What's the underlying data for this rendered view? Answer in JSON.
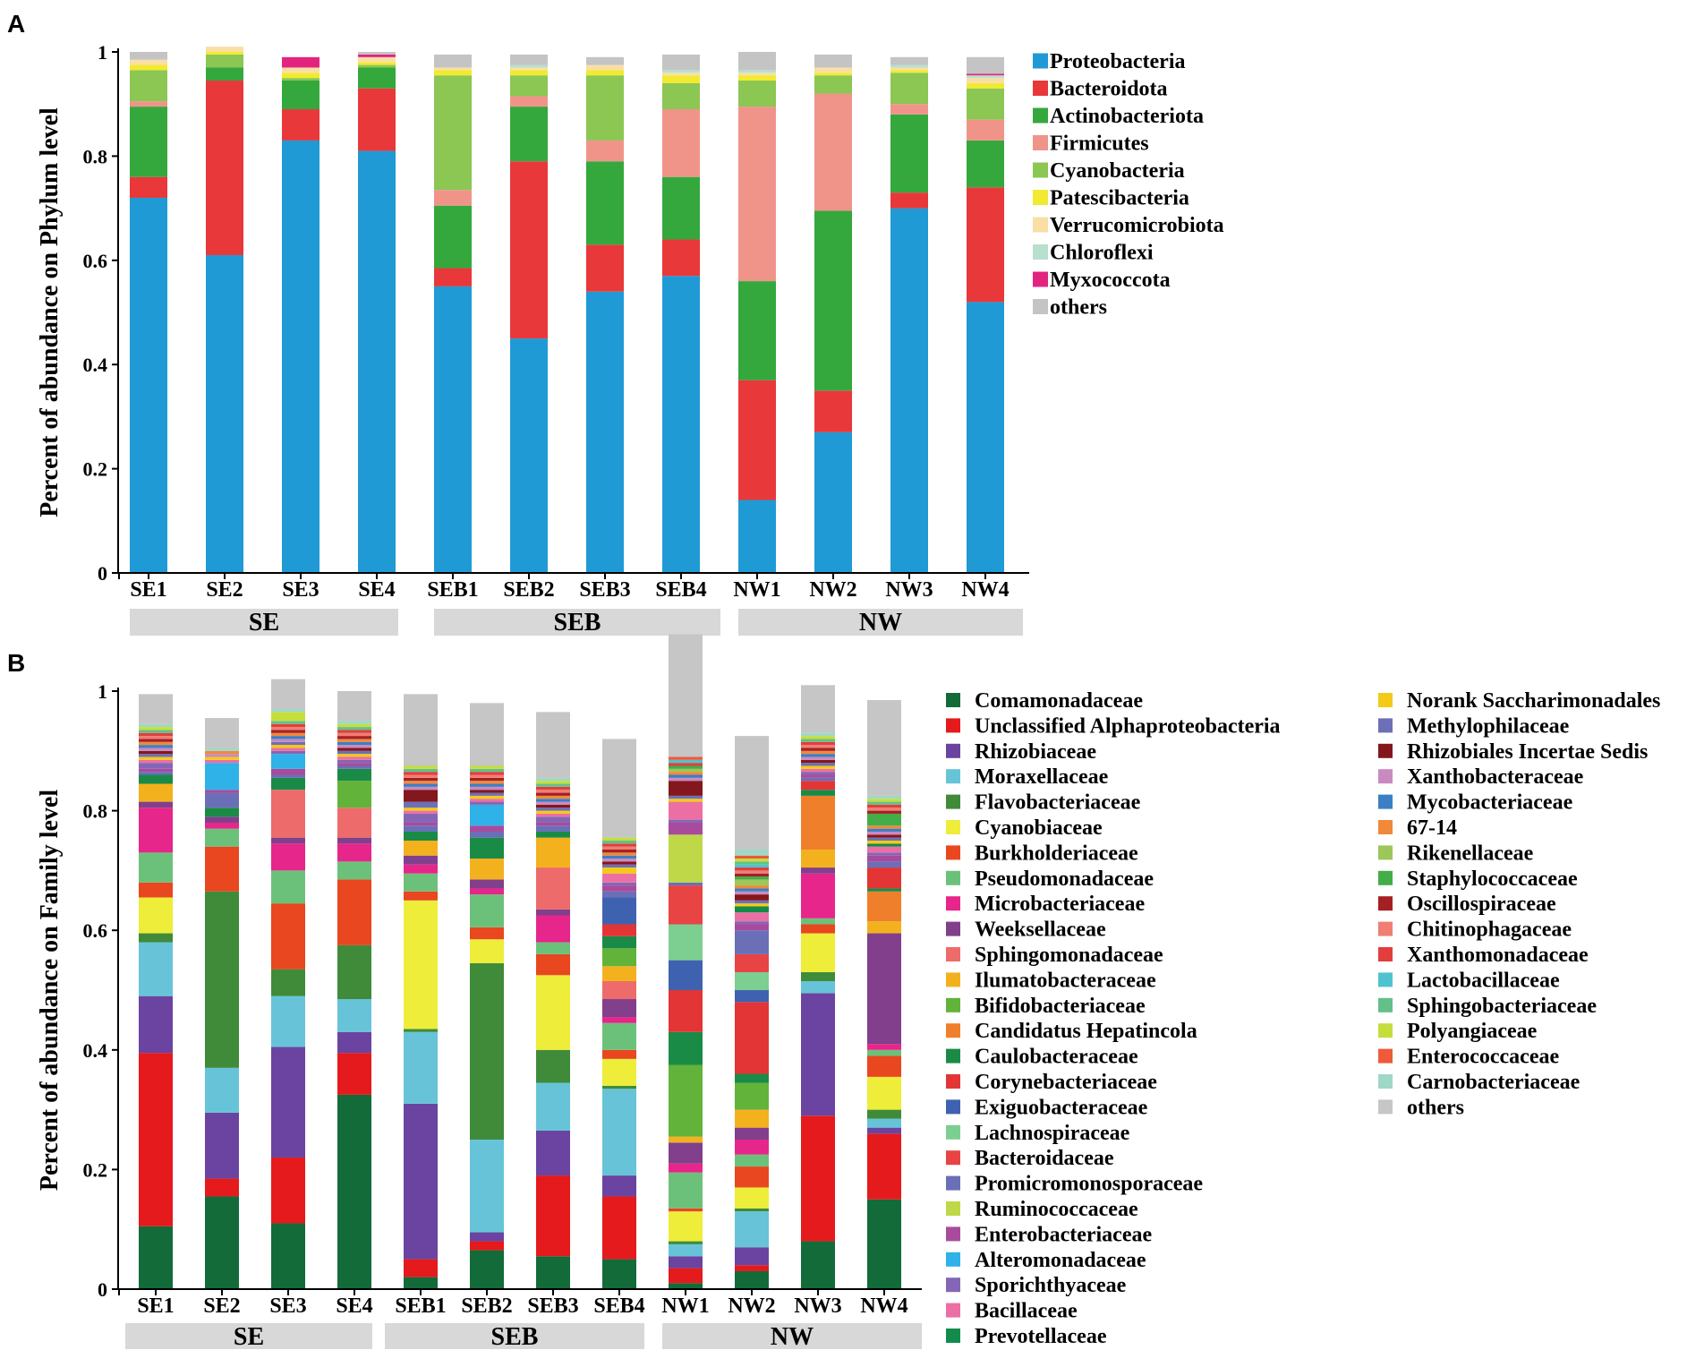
{
  "chart_data": [
    {
      "panel": "A",
      "type": "stacked-bar",
      "ylabel": "Percent of abundance on Phylum level",
      "ylim": [
        0,
        1
      ],
      "yticks": [
        "0",
        "0.2",
        "0.4",
        "0.6",
        "0.8",
        "1"
      ],
      "categories": [
        "SE1",
        "SE2",
        "SE3",
        "SE4",
        "SEB1",
        "SEB2",
        "SEB3",
        "SEB4",
        "NW1",
        "NW2",
        "NW3",
        "NW4"
      ],
      "groups": [
        {
          "label": "SE",
          "count": 4
        },
        {
          "label": "SEB",
          "count": 4
        },
        {
          "label": "NW",
          "count": 4
        }
      ],
      "series": [
        {
          "name": "Proteobacteria",
          "color": "#1f9ad5",
          "values": [
            0.72,
            0.61,
            0.83,
            0.81,
            0.55,
            0.45,
            0.54,
            0.57,
            0.14,
            0.27,
            0.7,
            0.52
          ]
        },
        {
          "name": "Bacteroidota",
          "color": "#e8383a",
          "values": [
            0.04,
            0.335,
            0.06,
            0.12,
            0.035,
            0.34,
            0.09,
            0.07,
            0.23,
            0.08,
            0.03,
            0.22
          ]
        },
        {
          "name": "Actinobacteriota",
          "color": "#34a83c",
          "values": [
            0.135,
            0.025,
            0.055,
            0.04,
            0.12,
            0.105,
            0.16,
            0.12,
            0.19,
            0.345,
            0.15,
            0.09
          ]
        },
        {
          "name": "Firmicutes",
          "color": "#f0948a",
          "values": [
            0.01,
            0.0,
            0.0,
            0.0,
            0.03,
            0.02,
            0.04,
            0.13,
            0.335,
            0.225,
            0.02,
            0.04
          ]
        },
        {
          "name": "Cyanobacteria",
          "color": "#8cc653",
          "values": [
            0.06,
            0.025,
            0.005,
            0.005,
            0.22,
            0.04,
            0.125,
            0.05,
            0.05,
            0.035,
            0.06,
            0.06
          ]
        },
        {
          "name": "Patescibacteria",
          "color": "#f1ea30",
          "values": [
            0.01,
            0.005,
            0.01,
            0.005,
            0.01,
            0.01,
            0.01,
            0.015,
            0.01,
            0.005,
            0.005,
            0.01
          ]
        },
        {
          "name": "Verrucomicrobiota",
          "color": "#f9dfa5",
          "values": [
            0.01,
            0.01,
            0.01,
            0.01,
            0.005,
            0.005,
            0.01,
            0.005,
            0.005,
            0.01,
            0.005,
            0.01
          ]
        },
        {
          "name": "Chloroflexi",
          "color": "#b7e0cf",
          "values": [
            0.0,
            0.0,
            0.0,
            0.0,
            0.0,
            0.005,
            0.0,
            0.005,
            0.005,
            0.0,
            0.005,
            0.005
          ]
        },
        {
          "name": "Myxococcota",
          "color": "#e3247f",
          "values": [
            0.0,
            0.0,
            0.02,
            0.005,
            0.0,
            0.0,
            0.0,
            0.0,
            0.0,
            0.0,
            0.0,
            0.003
          ]
        },
        {
          "name": "others",
          "color": "#c4c4c4",
          "values": [
            0.015,
            0.0,
            0.0,
            0.005,
            0.025,
            0.02,
            0.015,
            0.03,
            0.035,
            0.025,
            0.015,
            0.032
          ]
        }
      ]
    },
    {
      "panel": "B",
      "type": "stacked-bar",
      "ylabel": "Percent of abundance on Family level",
      "ylim": [
        0,
        1
      ],
      "yticks": [
        "0",
        "0.2",
        "0.4",
        "0.6",
        "0.8",
        "1"
      ],
      "categories": [
        "SE1",
        "SE2",
        "SE3",
        "SE4",
        "SEB1",
        "SEB2",
        "SEB3",
        "SEB4",
        "NW1",
        "NW2",
        "NW3",
        "NW4"
      ],
      "groups": [
        {
          "label": "SE",
          "count": 4
        },
        {
          "label": "SEB",
          "count": 4
        },
        {
          "label": "NW",
          "count": 4
        }
      ],
      "series": [
        {
          "name": "Comamonadaceae",
          "color": "#126b38",
          "values": [
            0.105,
            0.155,
            0.11,
            0.325,
            0.02,
            0.065,
            0.055,
            0.05,
            0.01,
            0.03,
            0.08,
            0.15
          ]
        },
        {
          "name": "Unclassified Alphaproteobacteria",
          "color": "#e41a1c",
          "values": [
            0.29,
            0.03,
            0.11,
            0.07,
            0.03,
            0.015,
            0.135,
            0.105,
            0.025,
            0.01,
            0.21,
            0.11
          ]
        },
        {
          "name": "Rhizobiaceae",
          "color": "#6a44a0",
          "values": [
            0.095,
            0.11,
            0.185,
            0.035,
            0.26,
            0.015,
            0.075,
            0.035,
            0.02,
            0.03,
            0.205,
            0.01
          ]
        },
        {
          "name": "Moraxellaceae",
          "color": "#67c4d8",
          "values": [
            0.09,
            0.075,
            0.085,
            0.055,
            0.12,
            0.155,
            0.08,
            0.145,
            0.02,
            0.06,
            0.02,
            0.015
          ]
        },
        {
          "name": "Flavobacteriaceae",
          "color": "#3f8b3a",
          "values": [
            0.015,
            0.295,
            0.045,
            0.09,
            0.005,
            0.295,
            0.055,
            0.005,
            0.005,
            0.005,
            0.015,
            0.015
          ]
        },
        {
          "name": "Cyanobiaceae",
          "color": "#eded3a",
          "values": [
            0.06,
            0.0,
            0.0,
            0.0,
            0.215,
            0.04,
            0.125,
            0.045,
            0.05,
            0.035,
            0.065,
            0.055
          ]
        },
        {
          "name": "Burkholderiaceae",
          "color": "#e8471f",
          "values": [
            0.025,
            0.075,
            0.11,
            0.11,
            0.015,
            0.02,
            0.035,
            0.015,
            0.005,
            0.035,
            0.015,
            0.035
          ]
        },
        {
          "name": "Pseudomonadaceae",
          "color": "#6cc17a",
          "values": [
            0.05,
            0.03,
            0.055,
            0.03,
            0.03,
            0.055,
            0.02,
            0.045,
            0.06,
            0.02,
            0.01,
            0.01
          ]
        },
        {
          "name": "Microbacteriaceae",
          "color": "#e6268a",
          "values": [
            0.075,
            0.01,
            0.045,
            0.03,
            0.015,
            0.01,
            0.045,
            0.01,
            0.015,
            0.025,
            0.075,
            0.01
          ]
        },
        {
          "name": "Weeksellaceae",
          "color": "#813f8c",
          "values": [
            0.01,
            0.01,
            0.01,
            0.01,
            0.015,
            0.015,
            0.01,
            0.03,
            0.035,
            0.02,
            0.01,
            0.185
          ]
        },
        {
          "name": "Sphingomonadaceae",
          "color": "#ee6b6b",
          "values": [
            0.0,
            0.0,
            0.08,
            0.05,
            0.0,
            0.0,
            0.07,
            0.03,
            0.0,
            0.0,
            0.0,
            0.0
          ]
        },
        {
          "name": "Ilumatobacteraceae",
          "color": "#f4b11e",
          "values": [
            0.03,
            0.0,
            0.0,
            0.0,
            0.025,
            0.035,
            0.05,
            0.025,
            0.01,
            0.03,
            0.03,
            0.02
          ]
        },
        {
          "name": "Bifidobacteriaceae",
          "color": "#62b33a",
          "values": [
            0.0,
            0.0,
            0.0,
            0.045,
            0.0,
            0.0,
            0.0,
            0.03,
            0.12,
            0.045,
            0.0,
            0.0
          ]
        },
        {
          "name": "Candidatus Hepatincola",
          "color": "#f07f2b",
          "values": [
            0.0,
            0.0,
            0.0,
            0.0,
            0.0,
            0.0,
            0.0,
            0.0,
            0.0,
            0.0,
            0.09,
            0.05
          ]
        },
        {
          "name": "Caulobacteraceae",
          "color": "#1a8b46",
          "values": [
            0.015,
            0.015,
            0.02,
            0.02,
            0.015,
            0.035,
            0.01,
            0.02,
            0.055,
            0.015,
            0.01,
            0.005
          ]
        },
        {
          "name": "Corynebacteriaceae",
          "color": "#e33535",
          "values": [
            0.0,
            0.0,
            0.0,
            0.0,
            0.0,
            0.0,
            0.0,
            0.02,
            0.07,
            0.12,
            0.015,
            0.035
          ]
        },
        {
          "name": "Exiguobacteraceae",
          "color": "#3f62b0",
          "values": [
            0.0,
            0.0,
            0.0,
            0.0,
            0.0,
            0.0,
            0.0,
            0.045,
            0.05,
            0.02,
            0.0,
            0.0
          ]
        },
        {
          "name": "Lachnospiraceae",
          "color": "#7ccf90",
          "values": [
            0.0,
            0.0,
            0.0,
            0.0,
            0.0,
            0.0,
            0.0,
            0.0,
            0.06,
            0.03,
            0.0,
            0.0
          ]
        },
        {
          "name": "Bacteroidaceae",
          "color": "#e84444",
          "values": [
            0.0,
            0.0,
            0.0,
            0.0,
            0.0,
            0.0,
            0.0,
            0.0,
            0.065,
            0.03,
            0.0,
            0.0
          ]
        },
        {
          "name": "Promicromonosporaceae",
          "color": "#6a6fb8",
          "values": [
            0.005,
            0.025,
            0.005,
            0.005,
            0.01,
            0.01,
            0.01,
            0.01,
            0.005,
            0.04,
            0.005,
            0.01
          ]
        },
        {
          "name": "Ruminococcaceae",
          "color": "#bfd847",
          "values": [
            0.0,
            0.0,
            0.0,
            0.0,
            0.0,
            0.0,
            0.0,
            0.0,
            0.08,
            0.0,
            0.0,
            0.0
          ]
        },
        {
          "name": "Enterobacteriaceae",
          "color": "#a94b9c",
          "values": [
            0.005,
            0.005,
            0.01,
            0.005,
            0.005,
            0.01,
            0.005,
            0.01,
            0.02,
            0.01,
            0.005,
            0.01
          ]
        },
        {
          "name": "Alteromonadaceae",
          "color": "#2eb2e7",
          "values": [
            0.0,
            0.045,
            0.025,
            0.0,
            0.0,
            0.035,
            0.0,
            0.0,
            0.0,
            0.0,
            0.0,
            0.0
          ]
        },
        {
          "name": "Sporichthyaceae",
          "color": "#8566b6",
          "values": [
            0.01,
            0.0,
            0.005,
            0.005,
            0.015,
            0.005,
            0.01,
            0.005,
            0.005,
            0.005,
            0.005,
            0.005
          ]
        },
        {
          "name": "Bacillaceae",
          "color": "#ec6fa4",
          "values": [
            0.005,
            0.005,
            0.005,
            0.005,
            0.005,
            0.005,
            0.005,
            0.015,
            0.03,
            0.015,
            0.005,
            0.01
          ]
        },
        {
          "name": "Prevotellaceae",
          "color": "#138b4b",
          "values": [
            0.0,
            0.0,
            0.0,
            0.0,
            0.0,
            0.0,
            0.0,
            0.0,
            0.0,
            0.01,
            0.0,
            0.005
          ]
        },
        {
          "name": "Norank Saccharimonadales",
          "color": "#f3ca18",
          "values": [
            0.005,
            0.005,
            0.005,
            0.005,
            0.005,
            0.005,
            0.005,
            0.01,
            0.005,
            0.005,
            0.005,
            0.005
          ]
        },
        {
          "name": "Methylophilaceae",
          "color": "#6d70b6",
          "values": [
            0.005,
            0.0,
            0.005,
            0.005,
            0.01,
            0.005,
            0.005,
            0.005,
            0.005,
            0.005,
            0.005,
            0.005
          ]
        },
        {
          "name": "Rhizobiales Incertae Sedis",
          "color": "#84171d",
          "values": [
            0.005,
            0.0,
            0.0,
            0.005,
            0.02,
            0.005,
            0.005,
            0.005,
            0.025,
            0.01,
            0.005,
            0.005
          ]
        },
        {
          "name": "Xanthobacteraceae",
          "color": "#c98ac0",
          "values": [
            0.005,
            0.005,
            0.005,
            0.005,
            0.005,
            0.005,
            0.005,
            0.005,
            0.005,
            0.005,
            0.005,
            0.005
          ]
        },
        {
          "name": "Mycobacteriaceae",
          "color": "#3b7fc4",
          "values": [
            0.005,
            0.0,
            0.005,
            0.005,
            0.005,
            0.005,
            0.005,
            0.005,
            0.005,
            0.005,
            0.005,
            0.005
          ]
        },
        {
          "name": "67-14",
          "color": "#f0893a",
          "values": [
            0.005,
            0.005,
            0.005,
            0.005,
            0.005,
            0.005,
            0.005,
            0.005,
            0.005,
            0.005,
            0.005,
            0.005
          ]
        },
        {
          "name": "Rikenellaceae",
          "color": "#9dc65b",
          "values": [
            0.0,
            0.0,
            0.0,
            0.0,
            0.0,
            0.0,
            0.0,
            0.0,
            0.005,
            0.01,
            0.0,
            0.0
          ]
        },
        {
          "name": "Staphylococcaceae",
          "color": "#43ad48",
          "values": [
            0.0,
            0.0,
            0.0,
            0.0,
            0.0,
            0.0,
            0.0,
            0.0,
            0.005,
            0.005,
            0.0,
            0.02
          ]
        },
        {
          "name": "Oscillospiraceae",
          "color": "#a52024",
          "values": [
            0.005,
            0.0,
            0.005,
            0.005,
            0.005,
            0.005,
            0.005,
            0.005,
            0.0,
            0.005,
            0.005,
            0.005
          ]
        },
        {
          "name": "Chitinophagaceae",
          "color": "#ef7e73",
          "values": [
            0.005,
            0.0,
            0.005,
            0.005,
            0.005,
            0.005,
            0.005,
            0.005,
            0.0,
            0.005,
            0.005,
            0.005
          ]
        },
        {
          "name": "Xanthomonadaceae",
          "color": "#e33d3d",
          "values": [
            0.005,
            0.0,
            0.005,
            0.005,
            0.005,
            0.005,
            0.005,
            0.005,
            0.005,
            0.005,
            0.005,
            0.005
          ]
        },
        {
          "name": "Lactobacillaceae",
          "color": "#4fc3cf",
          "values": [
            0.0,
            0.0,
            0.0,
            0.0,
            0.0,
            0.0,
            0.0,
            0.0,
            0.005,
            0.005,
            0.0,
            0.0
          ]
        },
        {
          "name": "Sphingobacteriaceae",
          "color": "#63c08a",
          "values": [
            0.005,
            0.0,
            0.005,
            0.005,
            0.005,
            0.005,
            0.005,
            0.005,
            0.0,
            0.005,
            0.005,
            0.005
          ]
        },
        {
          "name": "Polyangiaceae",
          "color": "#c6de3c",
          "values": [
            0.005,
            0.0,
            0.015,
            0.005,
            0.005,
            0.005,
            0.005,
            0.005,
            0.0,
            0.005,
            0.005,
            0.005
          ]
        },
        {
          "name": "Enterococcaceae",
          "color": "#ed5a3c",
          "values": [
            0.0,
            0.0,
            0.0,
            0.0,
            0.0,
            0.0,
            0.0,
            0.0,
            0.005,
            0.005,
            0.0,
            0.0
          ]
        },
        {
          "name": "Carnobacteriaceae",
          "color": "#9fd8c6",
          "values": [
            0.005,
            0.005,
            0.005,
            0.005,
            0.0,
            0.0,
            0.005,
            0.0,
            0.0,
            0.01,
            0.005,
            0.005
          ]
        },
        {
          "name": "others",
          "color": "#c6c6c6",
          "values": [
            0.05,
            0.05,
            0.05,
            0.05,
            0.12,
            0.105,
            0.11,
            0.165,
            0.205,
            0.19,
            0.08,
            0.16
          ]
        }
      ]
    }
  ]
}
